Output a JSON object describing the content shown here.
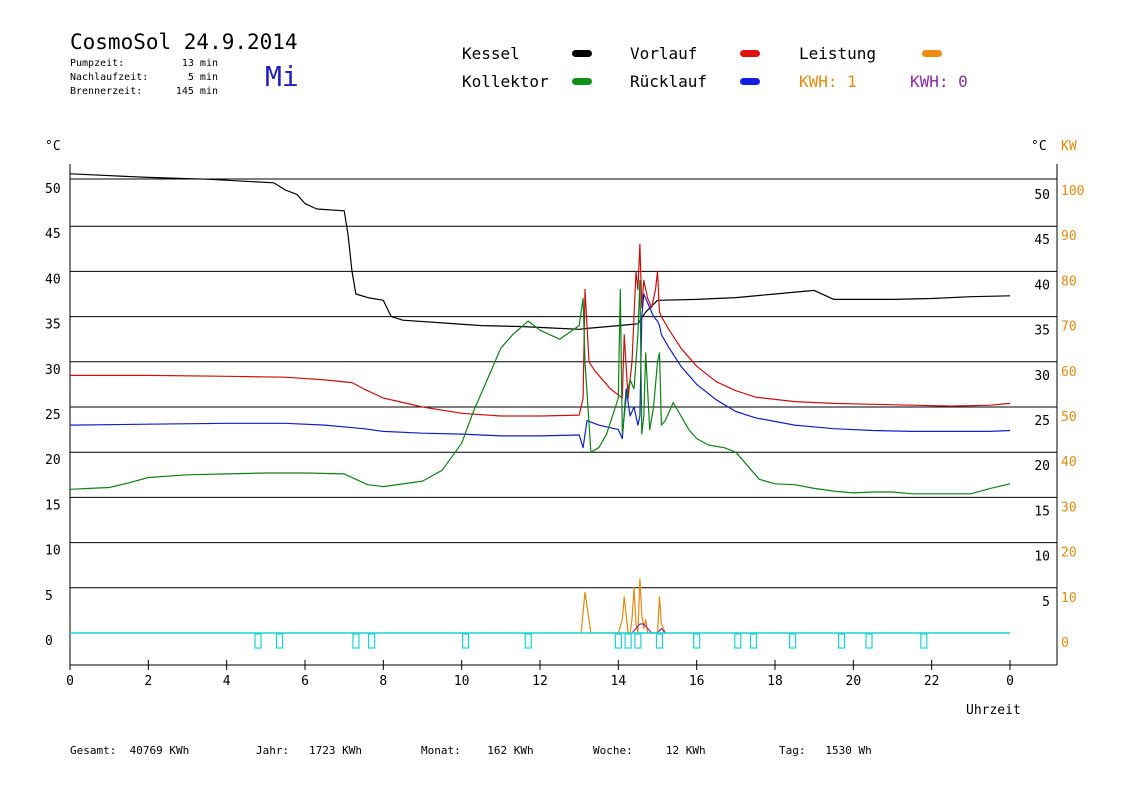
{
  "header": {
    "title": "CosmoSol 24.9.2014",
    "weekday": "Mi",
    "stats": [
      {
        "label": "Pumpzeit:",
        "value": "13 min"
      },
      {
        "label": "Nachlaufzeit:",
        "value": "5 min"
      },
      {
        "label": "Brennerzeit:",
        "value": "145 min"
      }
    ]
  },
  "legend": {
    "kessel": {
      "label": "Kessel",
      "color": "#000000"
    },
    "vorlauf": {
      "label": "Vorlauf",
      "color": "#e01010"
    },
    "leistung": {
      "label": "Leistung",
      "color": "#f08a10"
    },
    "kollektor": {
      "label": "Kollektor",
      "color": "#10901a"
    },
    "ruecklauf": {
      "label": "Rücklauf",
      "color": "#1020e0"
    },
    "kwh1": {
      "label": "KWH: 1",
      "color": "#e08a10"
    },
    "kwh0": {
      "label": "KWH: 0",
      "color": "#8a2aa8"
    }
  },
  "footer": {
    "gesamt": {
      "label": "Gesamt:",
      "value": "40769 KWh"
    },
    "jahr": {
      "label": "Jahr:",
      "value": "1723 KWh"
    },
    "monat": {
      "label": "Monat:",
      "value": "162 KWh"
    },
    "woche": {
      "label": "Woche:",
      "value": "12 KWh"
    },
    "tag": {
      "label": "Tag:",
      "value": "1530 Wh"
    }
  },
  "chart_data": {
    "type": "line",
    "xlabel": "Uhrzeit",
    "ylabel_left": "°C",
    "ylabel_right": "°C",
    "ylabel_right2": "KW",
    "xlim": [
      0,
      24
    ],
    "ylim": [
      0,
      50
    ],
    "ylim_kw": [
      0,
      100
    ],
    "grid": "horizontal",
    "x_ticks": [
      "0",
      "2",
      "4",
      "6",
      "8",
      "10",
      "12",
      "14",
      "16",
      "18",
      "20",
      "22",
      "0"
    ],
    "y_ticks_left": [
      "0",
      "5",
      "10",
      "15",
      "20",
      "25",
      "30",
      "35",
      "40",
      "45",
      "50"
    ],
    "y_ticks_right": [
      "5",
      "10",
      "15",
      "20",
      "25",
      "30",
      "35",
      "40",
      "45",
      "50"
    ],
    "y_ticks_kw": [
      "0",
      "10",
      "20",
      "30",
      "40",
      "50",
      "60",
      "70",
      "80",
      "90",
      "100"
    ],
    "series": [
      {
        "key": "kessel",
        "color": "#000000",
        "x": [
          0,
          0.5,
          2,
          3.5,
          5.2,
          5.5,
          5.8,
          6.0,
          6.3,
          7.0,
          7.1,
          7.2,
          7.3,
          7.6,
          8.0,
          8.2,
          8.5,
          9.5,
          10.5,
          11.5,
          12.5,
          13.0,
          13.2,
          13.5,
          14.0,
          14.5,
          14.7,
          15.0,
          16.0,
          17.0,
          18.0,
          19.0,
          19.3,
          19.5,
          20.0,
          21.0,
          22.0,
          23.0,
          24.0
        ],
        "y": [
          50.8,
          50.7,
          50.4,
          50.2,
          49.8,
          49.0,
          48.5,
          47.5,
          46.9,
          46.7,
          44.0,
          40.0,
          37.5,
          37.1,
          36.8,
          35.0,
          34.6,
          34.3,
          34.0,
          33.9,
          33.7,
          33.6,
          33.7,
          33.8,
          34.0,
          34.2,
          35.5,
          36.8,
          36.9,
          37.1,
          37.5,
          37.9,
          37.3,
          36.9,
          36.9,
          36.9,
          37.0,
          37.2,
          37.3
        ]
      },
      {
        "key": "vorlauf",
        "color": "#cc1010",
        "x": [
          0,
          2,
          4,
          5.5,
          6.5,
          7.2,
          7.5,
          8.0,
          9.0,
          10.0,
          11.0,
          12.0,
          13.0,
          13.1,
          13.15,
          13.25,
          13.4,
          13.8,
          14.1,
          14.15,
          14.25,
          14.35,
          14.45,
          14.5,
          14.55,
          14.6,
          14.65,
          14.75,
          14.85,
          14.95,
          15.0,
          15.05,
          15.1,
          15.3,
          15.6,
          16.0,
          16.5,
          17.0,
          17.5,
          18.5,
          19.5,
          20.5,
          21.5,
          22.5,
          23.5,
          24.0
        ],
        "y": [
          28.5,
          28.5,
          28.4,
          28.3,
          28.0,
          27.7,
          27.0,
          26.0,
          25.0,
          24.3,
          24.0,
          24.0,
          24.1,
          26.0,
          38.0,
          30.0,
          29.0,
          27.0,
          26.0,
          33.0,
          26.0,
          30.0,
          40.0,
          38.0,
          43.0,
          36.0,
          39.0,
          37.0,
          36.0,
          38.0,
          40.0,
          35.5,
          35.0,
          33.5,
          31.5,
          29.5,
          27.8,
          26.8,
          26.1,
          25.6,
          25.4,
          25.3,
          25.2,
          25.1,
          25.2,
          25.4
        ]
      },
      {
        "key": "ruecklauf",
        "color": "#1020c8",
        "x": [
          0,
          2,
          4,
          5.5,
          6.5,
          7.5,
          8.0,
          9.0,
          10.0,
          11.0,
          12.0,
          13.0,
          13.1,
          13.2,
          13.5,
          14.0,
          14.1,
          14.2,
          14.3,
          14.4,
          14.5,
          14.55,
          14.6,
          14.65,
          14.7,
          14.8,
          14.9,
          15.0,
          15.05,
          15.1,
          15.3,
          15.6,
          16.0,
          16.5,
          17.0,
          17.5,
          18.5,
          19.5,
          20.5,
          21.5,
          22.5,
          23.5,
          24.0
        ],
        "y": [
          23.0,
          23.1,
          23.2,
          23.2,
          23.0,
          22.6,
          22.3,
          22.1,
          22.0,
          21.8,
          21.8,
          21.9,
          20.5,
          23.5,
          23.0,
          22.5,
          21.5,
          27.0,
          24.0,
          25.0,
          23.0,
          24.0,
          35.0,
          37.5,
          37.0,
          36.0,
          35.0,
          34.5,
          34.0,
          33.0,
          31.5,
          29.5,
          27.5,
          25.8,
          24.5,
          23.8,
          23.0,
          22.6,
          22.4,
          22.3,
          22.3,
          22.3,
          22.4
        ]
      },
      {
        "key": "kollektor",
        "color": "#108018",
        "x": [
          0,
          0.5,
          1.0,
          1.5,
          2.0,
          3.0,
          4.0,
          5.0,
          6.0,
          7.0,
          7.3,
          7.6,
          8.0,
          9.0,
          9.5,
          10.0,
          10.3,
          10.7,
          11.0,
          11.3,
          11.7,
          12.0,
          12.5,
          13.0,
          13.1,
          13.15,
          13.3,
          13.5,
          13.7,
          14.0,
          14.05,
          14.1,
          14.2,
          14.3,
          14.4,
          14.5,
          14.55,
          14.6,
          14.65,
          14.7,
          14.8,
          14.9,
          15.0,
          15.05,
          15.1,
          15.2,
          15.4,
          15.6,
          15.8,
          16.0,
          16.3,
          16.7,
          17.0,
          17.3,
          17.6,
          18.0,
          18.5,
          19.0,
          19.5,
          20.0,
          20.5,
          21.0,
          21.5,
          22.0,
          22.5,
          23.0,
          23.5,
          24.0
        ],
        "y": [
          15.9,
          16.0,
          16.1,
          16.6,
          17.2,
          17.5,
          17.6,
          17.7,
          17.7,
          17.6,
          17.0,
          16.4,
          16.2,
          16.8,
          18.0,
          21.0,
          24.5,
          28.5,
          31.5,
          33.0,
          34.5,
          33.5,
          32.5,
          34.0,
          37.0,
          30.0,
          20.0,
          20.5,
          22.0,
          26.0,
          38.0,
          22.0,
          26.0,
          28.0,
          27.0,
          33.0,
          39.0,
          22.0,
          24.0,
          31.0,
          22.5,
          25.0,
          30.0,
          31.0,
          23.0,
          23.5,
          25.5,
          24.0,
          22.5,
          21.5,
          20.8,
          20.5,
          20.0,
          18.5,
          17.0,
          16.5,
          16.4,
          16.0,
          15.7,
          15.5,
          15.6,
          15.6,
          15.4,
          15.4,
          15.4,
          15.4,
          16.0,
          16.5
        ]
      },
      {
        "key": "leistung",
        "color": "#e08a10",
        "axis": "kw",
        "x": [
          13.05,
          13.15,
          13.2,
          13.3,
          14.0,
          14.1,
          14.15,
          14.25,
          14.3,
          14.35,
          14.4,
          14.45,
          14.5,
          14.55,
          14.6,
          14.65,
          14.7,
          14.75,
          15.0,
          15.05,
          15.1,
          15.15,
          15.2
        ],
        "y": [
          0,
          9,
          6,
          0,
          0,
          3,
          8,
          0,
          0,
          3,
          10,
          2,
          0,
          12,
          4,
          1,
          3,
          0,
          0,
          8,
          2,
          1,
          0
        ]
      },
      {
        "key": "kwh0",
        "color": "#8a2aa8",
        "axis": "kw",
        "x": [
          14.35,
          14.45,
          14.55,
          14.65,
          14.75,
          14.85,
          15.0,
          15.1,
          15.2
        ],
        "y": [
          0,
          1,
          2,
          2,
          1,
          0,
          0,
          1,
          0
        ]
      }
    ],
    "status_line": {
      "color": "#19d3d3",
      "y": 0,
      "markers_x": [
        4.8,
        5.35,
        7.3,
        7.7,
        10.1,
        11.7,
        14.0,
        14.25,
        14.5,
        15.05,
        16.0,
        17.05,
        17.45,
        18.45,
        19.7,
        20.4,
        21.8
      ]
    }
  }
}
